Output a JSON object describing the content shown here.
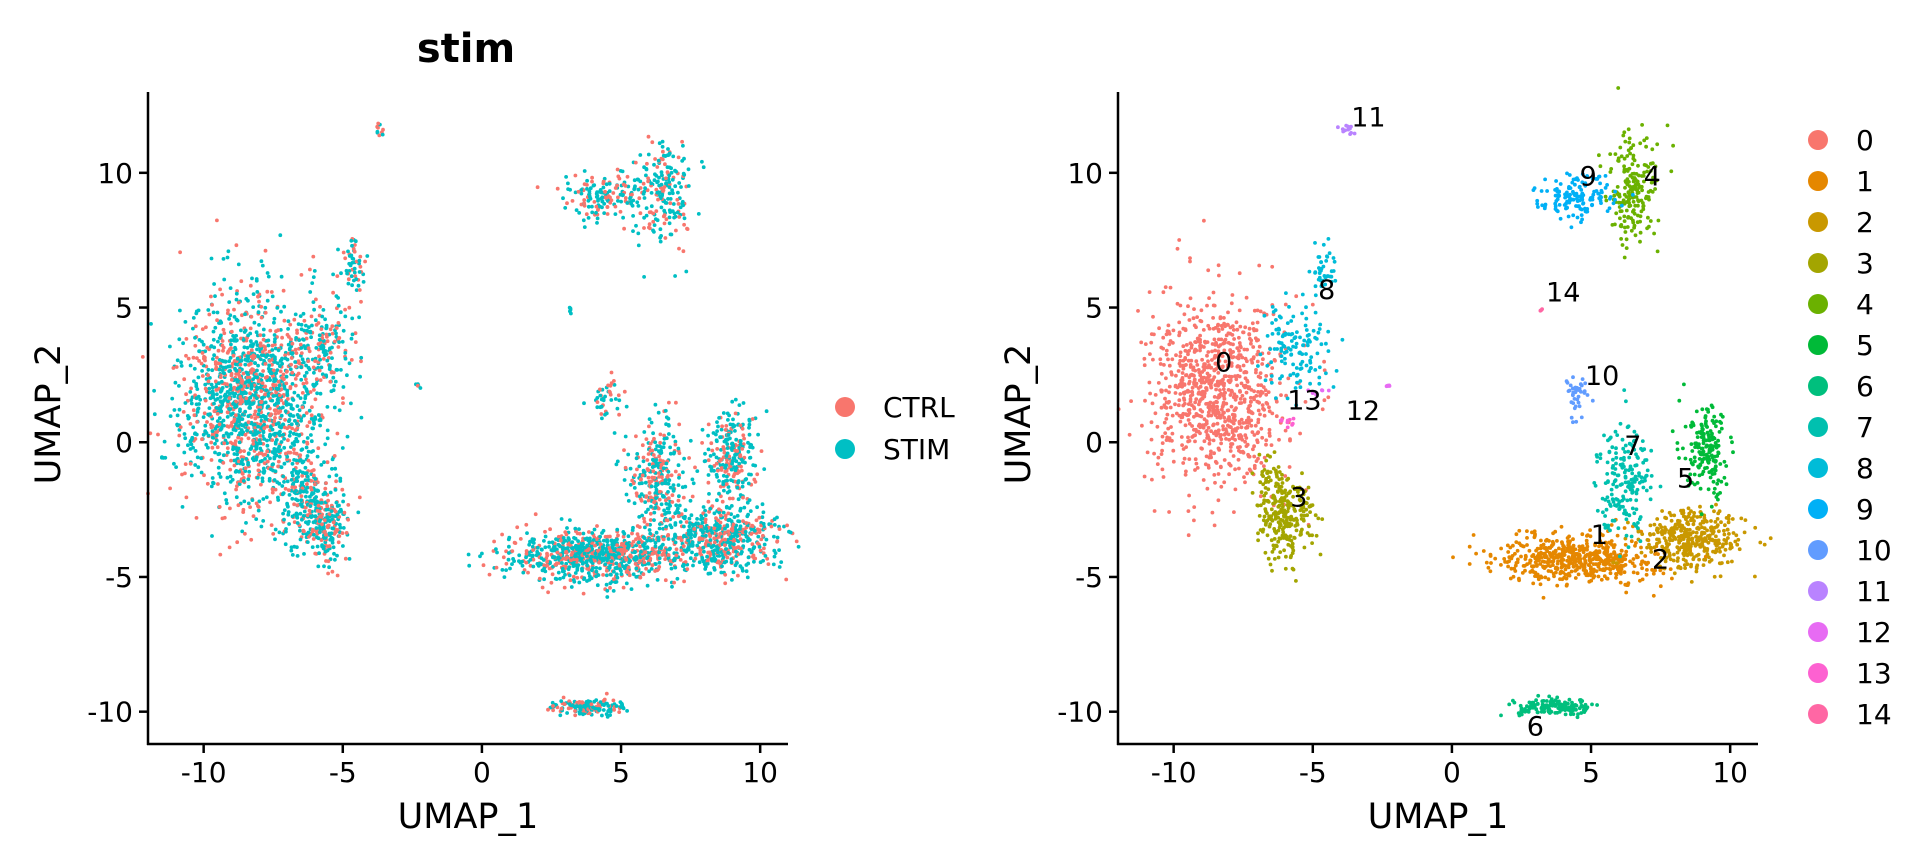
{
  "chart_data": [
    {
      "type": "scatter",
      "title": "stim",
      "xlabel": "UMAP_1",
      "ylabel": "UMAP_2",
      "xlim": [
        -12,
        11
      ],
      "ylim": [
        -11.2,
        13
      ],
      "xticks": [
        -10,
        -5,
        0,
        5,
        10
      ],
      "yticks": [
        -10,
        -5,
        0,
        5,
        10
      ],
      "xtick_labels": [
        "-10",
        "-5",
        "0",
        "5",
        "10"
      ],
      "ytick_labels": [
        "-10",
        "-5",
        "0",
        "5",
        "10"
      ],
      "grid": false,
      "legend_position": "right",
      "series": [
        {
          "name": "CTRL",
          "color": "#F8766D"
        },
        {
          "name": "STIM",
          "color": "#00BFC4"
        }
      ],
      "groups": [
        {
          "cx": -8.3,
          "cy": 1.6,
          "sx": 1.25,
          "sy": 1.9,
          "weight": 0.3
        },
        {
          "cx": -6.5,
          "cy": -1.8,
          "sx": 0.45,
          "sy": 0.9,
          "weight": 0.03
        },
        {
          "cx": -5.7,
          "cy": -3.0,
          "sx": 0.45,
          "sy": 0.75,
          "weight": 0.05
        },
        {
          "cx": -5.6,
          "cy": 3.5,
          "sx": 0.6,
          "sy": 0.9,
          "weight": 0.03
        },
        {
          "cx": -4.6,
          "cy": 6.6,
          "sx": 0.2,
          "sy": 0.6,
          "weight": 0.01
        },
        {
          "cx": 4.2,
          "cy": -4.2,
          "sx": 1.5,
          "sy": 0.45,
          "weight": 0.17
        },
        {
          "cx": 8.6,
          "cy": -3.6,
          "sx": 1.0,
          "sy": 0.6,
          "weight": 0.1
        },
        {
          "cx": 6.3,
          "cy": -1.2,
          "sx": 0.55,
          "sy": 1.1,
          "weight": 0.06
        },
        {
          "cx": 9.0,
          "cy": -0.5,
          "sx": 0.45,
          "sy": 0.9,
          "weight": 0.05
        },
        {
          "cx": 6.5,
          "cy": 9.2,
          "sx": 0.5,
          "sy": 1.0,
          "weight": 0.04
        },
        {
          "cx": 4.4,
          "cy": 9.1,
          "sx": 0.7,
          "sy": 0.4,
          "weight": 0.03
        },
        {
          "cx": 3.8,
          "cy": -9.85,
          "sx": 0.7,
          "sy": 0.15,
          "weight": 0.03
        },
        {
          "cx": 4.5,
          "cy": 1.6,
          "sx": 0.25,
          "sy": 0.35,
          "weight": 0.008
        },
        {
          "cx": -3.7,
          "cy": 11.6,
          "sx": 0.12,
          "sy": 0.15,
          "weight": 0.002
        },
        {
          "cx": -5.9,
          "cy": 0.8,
          "sx": 0.15,
          "sy": 0.08,
          "weight": 0.002
        },
        {
          "cx": -2.3,
          "cy": 2.1,
          "sx": 0.06,
          "sy": 0.05,
          "weight": 0.001
        },
        {
          "cx": 3.2,
          "cy": 4.9,
          "sx": 0.04,
          "sy": 0.05,
          "weight": 0.001
        }
      ]
    },
    {
      "type": "scatter",
      "title": "",
      "xlabel": "UMAP_1",
      "ylabel": "UMAP_2",
      "xlim": [
        -12,
        11
      ],
      "ylim": [
        -11.2,
        13
      ],
      "xticks": [
        -10,
        -5,
        0,
        5,
        10
      ],
      "yticks": [
        -10,
        -5,
        0,
        5,
        10
      ],
      "xtick_labels": [
        "-10",
        "-5",
        "0",
        "5",
        "10"
      ],
      "ytick_labels": [
        "-10",
        "-5",
        "0",
        "5",
        "10"
      ],
      "grid": false,
      "legend_position": "right",
      "series": [
        {
          "name": "0",
          "color": "#F8766D"
        },
        {
          "name": "1",
          "color": "#E58700"
        },
        {
          "name": "2",
          "color": "#C99800"
        },
        {
          "name": "3",
          "color": "#A3A500"
        },
        {
          "name": "4",
          "color": "#6BB100"
        },
        {
          "name": "5",
          "color": "#00BA38"
        },
        {
          "name": "6",
          "color": "#00BF7D"
        },
        {
          "name": "7",
          "color": "#00C0AF"
        },
        {
          "name": "8",
          "color": "#00BCD8"
        },
        {
          "name": "9",
          "color": "#00B0F6"
        },
        {
          "name": "10",
          "color": "#619CFF"
        },
        {
          "name": "11",
          "color": "#B983FF"
        },
        {
          "name": "12",
          "color": "#E76BF3"
        },
        {
          "name": "13",
          "color": "#FD61D1"
        },
        {
          "name": "14",
          "color": "#FF67A4"
        }
      ],
      "clusters": [
        {
          "id": "0",
          "label_x": -8.2,
          "label_y": 2.9,
          "blobs": [
            {
              "cx": -8.4,
              "cy": 1.8,
              "sx": 1.2,
              "sy": 1.7,
              "n": 900
            }
          ]
        },
        {
          "id": "1",
          "label_x": 5.3,
          "label_y": -3.5,
          "blobs": [
            {
              "cx": 4.6,
              "cy": -4.3,
              "sx": 1.4,
              "sy": 0.45,
              "n": 560
            }
          ]
        },
        {
          "id": "2",
          "label_x": 7.5,
          "label_y": -4.4,
          "blobs": [
            {
              "cx": 8.7,
              "cy": -3.6,
              "sx": 0.9,
              "sy": 0.55,
              "n": 360
            }
          ]
        },
        {
          "id": "3",
          "label_x": -5.5,
          "label_y": -2.1,
          "blobs": [
            {
              "cx": -6.0,
              "cy": -2.8,
              "sx": 0.5,
              "sy": 0.8,
              "n": 240
            },
            {
              "cx": -6.6,
              "cy": -1.3,
              "sx": 0.3,
              "sy": 0.4,
              "n": 40
            }
          ]
        },
        {
          "id": "4",
          "label_x": 7.2,
          "label_y": 9.8,
          "blobs": [
            {
              "cx": 6.5,
              "cy": 9.3,
              "sx": 0.45,
              "sy": 1.0,
              "n": 200
            }
          ]
        },
        {
          "id": "5",
          "label_x": 8.4,
          "label_y": -1.4,
          "blobs": [
            {
              "cx": 9.2,
              "cy": -0.4,
              "sx": 0.4,
              "sy": 0.8,
              "n": 180
            }
          ]
        },
        {
          "id": "6",
          "label_x": 3.0,
          "label_y": -10.6,
          "blobs": [
            {
              "cx": 3.8,
              "cy": -9.85,
              "sx": 0.7,
              "sy": 0.15,
              "n": 150
            }
          ]
        },
        {
          "id": "7",
          "label_x": 6.5,
          "label_y": -0.2,
          "blobs": [
            {
              "cx": 6.2,
              "cy": -1.2,
              "sx": 0.5,
              "sy": 1.0,
              "n": 190
            }
          ]
        },
        {
          "id": "8",
          "label_x": -4.5,
          "label_y": 5.6,
          "blobs": [
            {
              "cx": -5.6,
              "cy": 3.4,
              "sx": 0.6,
              "sy": 0.9,
              "n": 130
            },
            {
              "cx": -4.6,
              "cy": 6.5,
              "sx": 0.2,
              "sy": 0.6,
              "n": 40
            }
          ]
        },
        {
          "id": "9",
          "label_x": 4.9,
          "label_y": 9.8,
          "blobs": [
            {
              "cx": 4.5,
              "cy": 9.1,
              "sx": 0.7,
              "sy": 0.4,
              "n": 150
            }
          ]
        },
        {
          "id": "10",
          "label_x": 5.4,
          "label_y": 2.4,
          "blobs": [
            {
              "cx": 4.5,
              "cy": 1.6,
              "sx": 0.25,
              "sy": 0.35,
              "n": 40
            }
          ]
        },
        {
          "id": "11",
          "label_x": -3.0,
          "label_y": 12.0,
          "blobs": [
            {
              "cx": -3.8,
              "cy": 11.6,
              "sx": 0.12,
              "sy": 0.15,
              "n": 12
            }
          ]
        },
        {
          "id": "12",
          "label_x": -3.2,
          "label_y": 1.1,
          "blobs": [
            {
              "cx": -2.3,
              "cy": 2.1,
              "sx": 0.06,
              "sy": 0.05,
              "n": 6
            },
            {
              "cx": -4.8,
              "cy": 1.9,
              "sx": 0.2,
              "sy": 0.05,
              "n": 6
            }
          ]
        },
        {
          "id": "13",
          "label_x": -5.3,
          "label_y": 1.5,
          "blobs": [
            {
              "cx": -5.9,
              "cy": 0.8,
              "sx": 0.15,
              "sy": 0.08,
              "n": 10
            }
          ]
        },
        {
          "id": "14",
          "label_x": 4.0,
          "label_y": 5.5,
          "blobs": [
            {
              "cx": 3.2,
              "cy": 4.9,
              "sx": 0.04,
              "sy": 0.05,
              "n": 3
            }
          ]
        }
      ]
    }
  ]
}
